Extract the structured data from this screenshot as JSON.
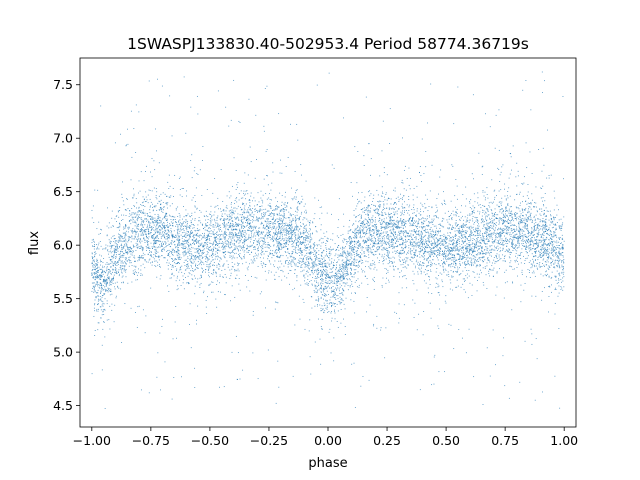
{
  "chart_data": {
    "type": "scatter",
    "title": "1SWASPJ133830.40-502953.4 Period 58774.36719s",
    "xlabel": "phase",
    "ylabel": "flux",
    "xlim": [
      -1.05,
      1.05
    ],
    "ylim": [
      4.3,
      7.75
    ],
    "x_ticks": [
      -1.0,
      -0.75,
      -0.5,
      -0.25,
      0.0,
      0.25,
      0.5,
      0.75,
      1.0
    ],
    "x_tick_labels": [
      "−1.00",
      "−0.75",
      "−0.50",
      "−0.25",
      "0.00",
      "0.25",
      "0.50",
      "0.75",
      "1.00"
    ],
    "y_ticks": [
      4.5,
      5.0,
      5.5,
      6.0,
      6.5,
      7.0,
      7.5
    ],
    "y_tick_labels": [
      "4.5",
      "5.0",
      "5.5",
      "6.0",
      "6.5",
      "7.0",
      "7.5"
    ],
    "grid": false,
    "legend": "none",
    "marker_color": "#1f77b4",
    "series": [
      {
        "phase": [
          -1.0,
          -0.975,
          -0.95,
          -0.925,
          -0.9,
          -0.85,
          -0.8,
          -0.75,
          -0.7,
          -0.65,
          -0.6,
          -0.55,
          -0.5,
          -0.45,
          -0.4,
          -0.35,
          -0.3,
          -0.25,
          -0.2,
          -0.15,
          -0.1,
          -0.075,
          -0.05,
          -0.025,
          0.0,
          0.025,
          0.05,
          0.075,
          0.1,
          0.15,
          0.2,
          0.25,
          0.3,
          0.35,
          0.4,
          0.45,
          0.5,
          0.55,
          0.6,
          0.65,
          0.7,
          0.75,
          0.8,
          0.85,
          0.9,
          0.95,
          1.0
        ],
        "flux": [
          5.8,
          5.72,
          5.65,
          5.75,
          5.88,
          6.02,
          6.1,
          6.15,
          6.12,
          6.05,
          6.0,
          5.98,
          6.0,
          6.05,
          6.1,
          6.13,
          6.14,
          6.12,
          6.1,
          6.08,
          6.02,
          5.92,
          5.82,
          5.74,
          5.7,
          5.66,
          5.7,
          5.8,
          5.95,
          6.08,
          6.12,
          6.14,
          6.12,
          6.08,
          6.03,
          6.0,
          5.98,
          6.0,
          6.03,
          6.07,
          6.11,
          6.13,
          6.13,
          6.1,
          6.05,
          6.0,
          5.9
        ]
      }
    ]
  }
}
